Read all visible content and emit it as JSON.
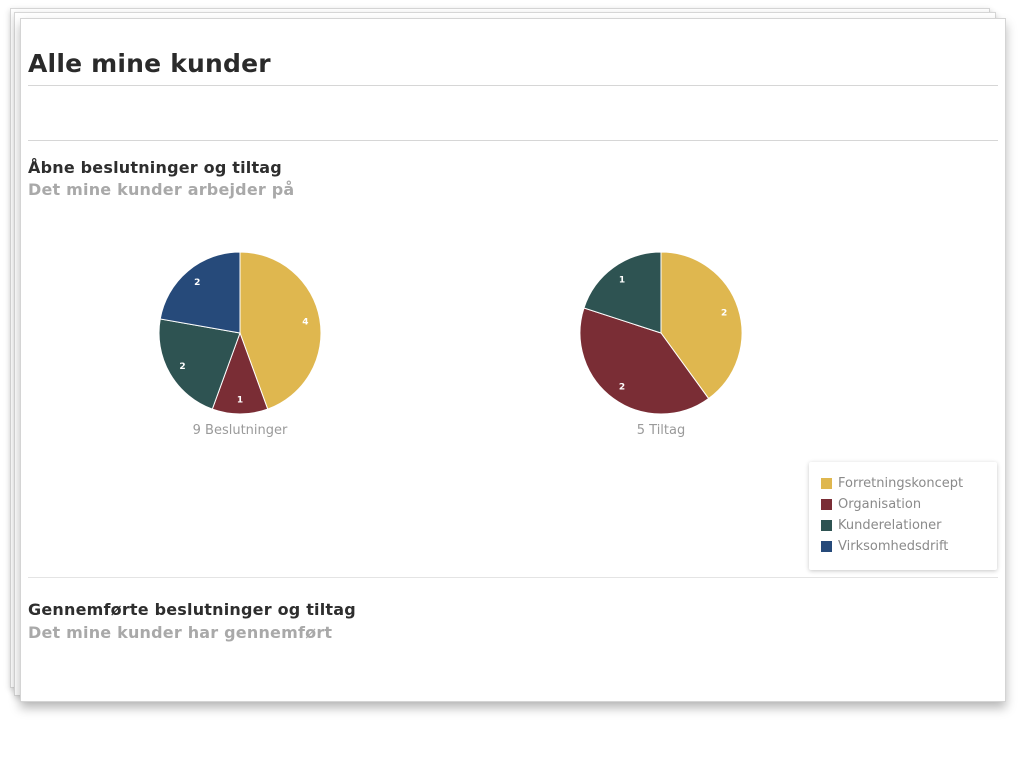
{
  "page": {
    "title": "Alle mine kunder"
  },
  "open_section": {
    "title": "Åbne beslutninger og tiltag",
    "subtitle": "Det mine kunder arbejder på"
  },
  "done_section": {
    "title": "Gennemførte beslutninger og tiltag",
    "subtitle": "Det mine kunder har gennemført"
  },
  "colors": {
    "Forretningskoncept": "#dfb74f",
    "Organisation": "#7a2d35",
    "Kunderelationer": "#2e5352",
    "Virksomhedsdrift": "#264a7a"
  },
  "legend": {
    "items": [
      "Forretningskoncept",
      "Organisation",
      "Kunderelationer",
      "Virksomhedsdrift"
    ]
  },
  "chart_data": [
    {
      "type": "pie",
      "title": "9 Beslutninger",
      "categories": [
        "Forretningskoncept",
        "Organisation",
        "Kunderelationer",
        "Virksomhedsdrift"
      ],
      "values": [
        4,
        1,
        2,
        2
      ]
    },
    {
      "type": "pie",
      "title": "5 Tiltag",
      "categories": [
        "Forretningskoncept",
        "Organisation",
        "Kunderelationer"
      ],
      "values": [
        2,
        2,
        1
      ]
    }
  ]
}
